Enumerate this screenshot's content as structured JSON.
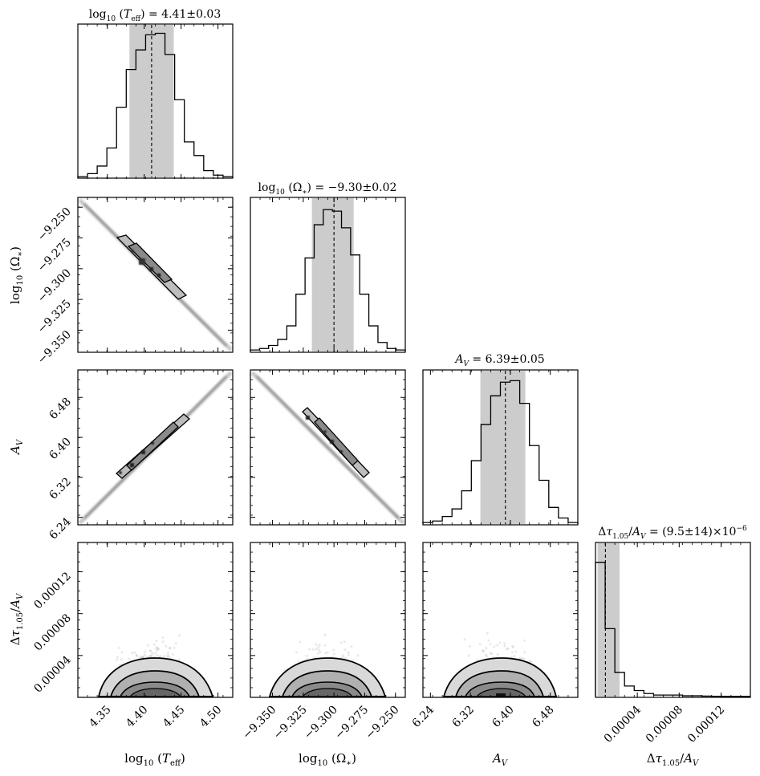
{
  "chart_data": {
    "type": "corner",
    "parameters": [
      {
        "key": "logT",
        "label": "log₁₀ (T_eff)",
        "title": "log₁₀ (T_eff) = 4.41±0.03",
        "range": [
          4.31,
          4.52
        ],
        "ticks": [
          "4.35",
          "4.40",
          "4.45",
          "4.50"
        ],
        "median": 4.41,
        "q16": 4.38,
        "q84": 4.44
      },
      {
        "key": "logOmega",
        "label": "log₁₀ (Ω*)",
        "title": "log₁₀ (Ω*) = −9.30±0.02",
        "range": [
          -9.368,
          -9.242
        ],
        "ticks": [
          "−9.350",
          "−9.325",
          "−9.300",
          "−9.275",
          "−9.250"
        ],
        "median": -9.3,
        "q16": -9.318,
        "q84": -9.284
      },
      {
        "key": "Av",
        "label": "A_V",
        "title": "A_V = 6.39±0.05",
        "range": [
          6.225,
          6.535
        ],
        "ticks": [
          "6.24",
          "6.32",
          "6.40",
          "6.48"
        ],
        "median": 6.39,
        "q16": 6.34,
        "q84": 6.43
      },
      {
        "key": "dtau",
        "label": "Δτ₁.₀₅/A_V",
        "title": "Δτ₁.₀₅/A_V = (9.5±14)×10⁻⁶",
        "range": [
          0.0,
          0.000148
        ],
        "ticks": [
          "0.00004",
          "0.00008",
          "0.00012"
        ],
        "median": 9.5e-06,
        "q16": 2e-06,
        "q84": 2.3e-05
      }
    ],
    "histograms": {
      "logT": [
        0.01,
        0.03,
        0.08,
        0.2,
        0.47,
        0.72,
        0.85,
        0.95,
        0.96,
        0.82,
        0.52,
        0.24,
        0.15,
        0.05,
        0.02,
        0.01
      ],
      "logOmega": [
        0.01,
        0.02,
        0.04,
        0.08,
        0.17,
        0.38,
        0.62,
        0.84,
        0.94,
        0.93,
        0.82,
        0.64,
        0.38,
        0.17,
        0.06,
        0.02,
        0.01
      ],
      "Av": [
        0.01,
        0.02,
        0.05,
        0.1,
        0.22,
        0.42,
        0.66,
        0.85,
        0.94,
        0.95,
        0.8,
        0.52,
        0.29,
        0.11,
        0.04,
        0.01
      ],
      "dtau": [
        0.89,
        0.45,
        0.16,
        0.07,
        0.04,
        0.02,
        0.01,
        0.01,
        0.01,
        0.005,
        0.005,
        0.003,
        0.002,
        0.001,
        0.001,
        0.001
      ]
    }
  }
}
